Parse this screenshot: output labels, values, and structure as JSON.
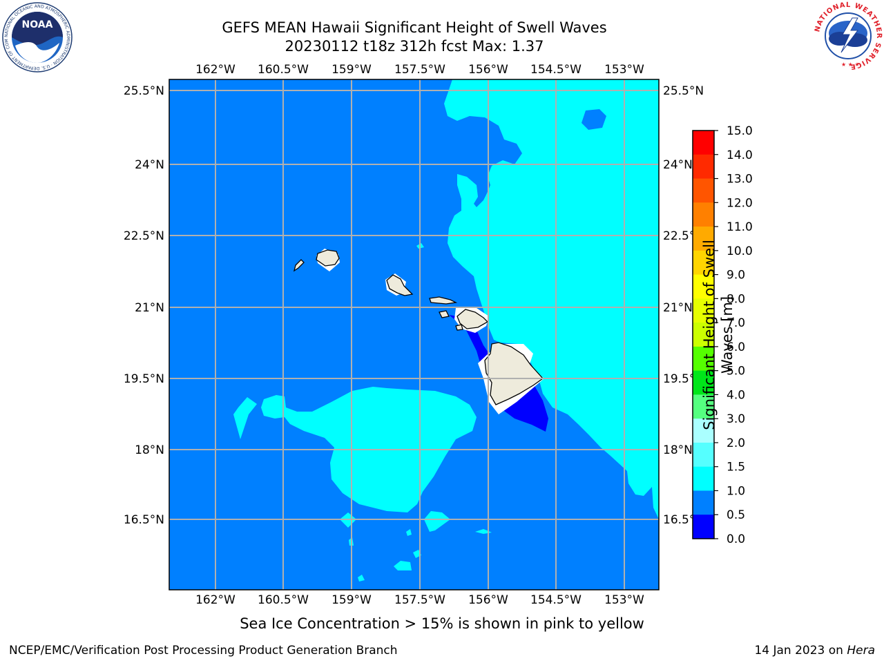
{
  "title": {
    "line1": "GEFS MEAN Hawaii Significant Height of Swell Waves",
    "line2": "20230112 t18z 312h fcst   Max: 1.37"
  },
  "map": {
    "lon_ticks": [
      "162°W",
      "160.5°W",
      "159°W",
      "157.5°W",
      "156°W",
      "154.5°W",
      "153°W"
    ],
    "lat_ticks": [
      "25.5°N",
      "24°N",
      "22.5°N",
      "21°N",
      "19.5°N",
      "18°N",
      "16.5°N"
    ],
    "lat_ticks_right": [
      "25.5°N",
      "24°N",
      "22.5°N",
      "21°N",
      "19.5°N",
      "18°N",
      "16.5°N"
    ],
    "colors": {
      "ocean_0_5_1_0": "#0080ff",
      "swell_1_0_1_5": "#00ffff",
      "swell_0_0_0_5": "#0000ff",
      "land": "#eeebdc",
      "grid": "#b0b0b0"
    },
    "islands": [
      "Niihau",
      "Kauai",
      "Oahu",
      "Molokai",
      "Maui",
      "Hawaii"
    ]
  },
  "colorbar": {
    "label": "Significant Height of Swell Waves [m]",
    "label_line1": "Significant Height of Swell",
    "label_line2": "Waves [m]",
    "ticks": [
      "15.0",
      "14.0",
      "13.0",
      "12.0",
      "11.0",
      "10.0",
      "9.0",
      "8.0",
      "7.0",
      "6.0",
      "5.0",
      "4.0",
      "3.0",
      "2.0",
      "1.5",
      "1.0",
      "0.5",
      "0.0"
    ],
    "bands": [
      {
        "from": 14.0,
        "to": 15.0,
        "color": "#ff0000"
      },
      {
        "from": 13.0,
        "to": 14.0,
        "color": "#ff2a00"
      },
      {
        "from": 12.0,
        "to": 13.0,
        "color": "#ff5500"
      },
      {
        "from": 11.0,
        "to": 12.0,
        "color": "#ff8000"
      },
      {
        "from": 10.0,
        "to": 11.0,
        "color": "#ffaa00"
      },
      {
        "from": 9.0,
        "to": 10.0,
        "color": "#ffd500"
      },
      {
        "from": 8.0,
        "to": 9.0,
        "color": "#ffff00"
      },
      {
        "from": 7.0,
        "to": 8.0,
        "color": "#e6ff00"
      },
      {
        "from": 6.0,
        "to": 7.0,
        "color": "#ccff00"
      },
      {
        "from": 5.0,
        "to": 6.0,
        "color": "#55ff00"
      },
      {
        "from": 4.0,
        "to": 5.0,
        "color": "#00e61a"
      },
      {
        "from": 3.0,
        "to": 4.0,
        "color": "#55ff80"
      },
      {
        "from": 2.0,
        "to": 3.0,
        "color": "#aaffff"
      },
      {
        "from": 1.5,
        "to": 2.0,
        "color": "#55ffff"
      },
      {
        "from": 1.0,
        "to": 1.5,
        "color": "#00ffff"
      },
      {
        "from": 0.5,
        "to": 1.0,
        "color": "#0080ff"
      },
      {
        "from": 0.0,
        "to": 0.5,
        "color": "#0000ff"
      }
    ]
  },
  "caption": "Sea Ice Concentration > 15% is shown in pink to yellow",
  "footer": {
    "left": "NCEP/EMC/Verification Post Processing Product Generation Branch",
    "right_prefix": "14 Jan 2023 on ",
    "right_host": "Hera"
  },
  "logos": {
    "noaa": {
      "text": "NOAA",
      "ring_text": "NATIONAL OCEANIC AND ATMOSPHERIC ADMINISTRATION · U.S. DEPARTMENT OF COMMERCE"
    },
    "nws": {
      "ring_text": "NATIONAL WEATHER SERVICE"
    }
  }
}
